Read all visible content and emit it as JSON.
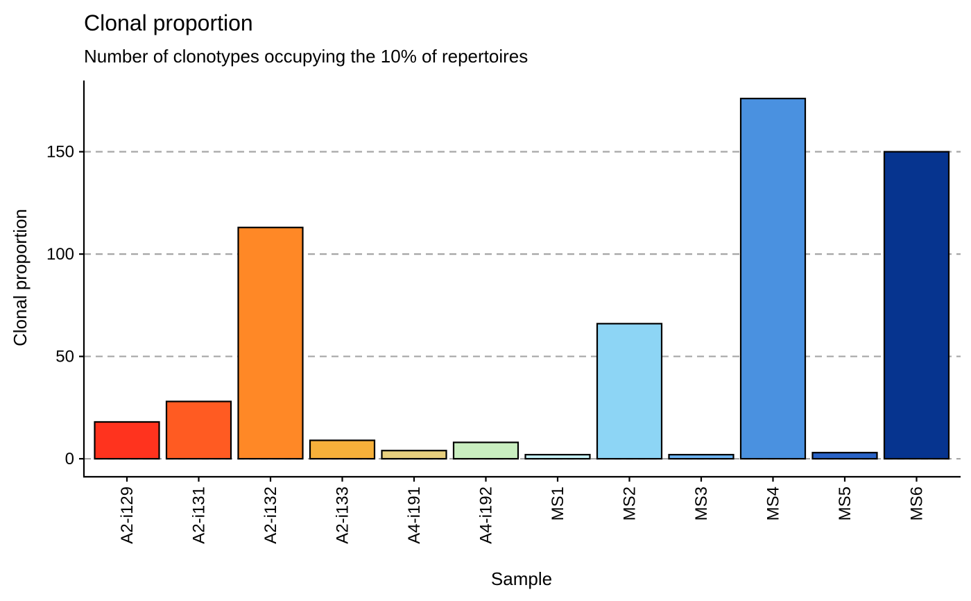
{
  "chart_data": {
    "type": "bar",
    "title": "Clonal proportion",
    "subtitle": "Number of clonotypes occupying the 10% of repertoires",
    "xlabel": "Sample",
    "ylabel": "Clonal proportion",
    "categories": [
      "A2-i129",
      "A2-i131",
      "A2-i132",
      "A2-i133",
      "A4-i191",
      "A4-i192",
      "MS1",
      "MS2",
      "MS3",
      "MS4",
      "MS5",
      "MS6"
    ],
    "values": [
      18,
      28,
      113,
      9,
      4,
      8,
      2,
      66,
      2,
      176,
      3,
      150
    ],
    "colors": [
      "#FF331E",
      "#FF5B22",
      "#FF8826",
      "#F6B03A",
      "#E8CF7E",
      "#C9EEC0",
      "#C8F3F7",
      "#8DD5F5",
      "#6FB7F5",
      "#4A91E0",
      "#2A63C6",
      "#06348F"
    ],
    "yticks": [
      0,
      50,
      100,
      150
    ],
    "ylim": [
      -8.8,
      184.8
    ],
    "grid": "horizontal dashed",
    "legend": "none"
  }
}
